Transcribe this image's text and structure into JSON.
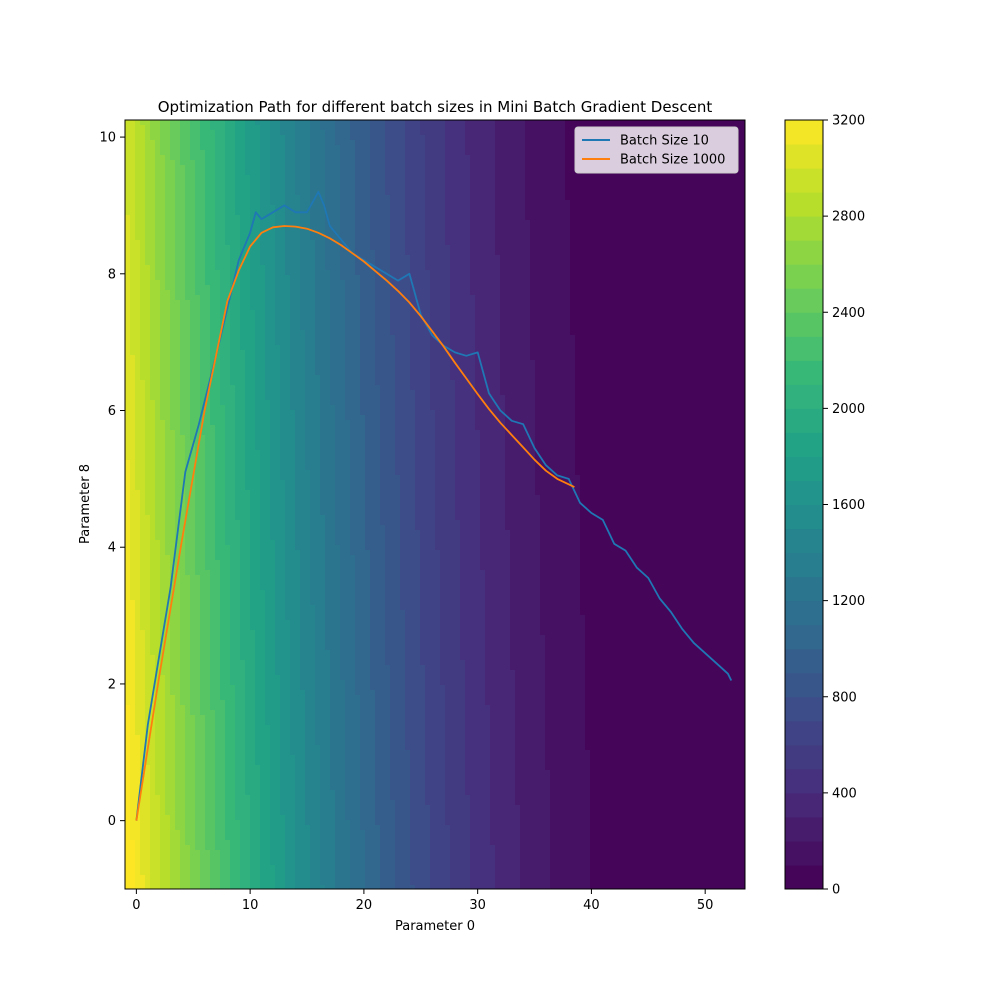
{
  "chart_data": {
    "type": "contour",
    "title": "Optimization Path for different batch sizes in Mini Batch Gradient Descent",
    "xlabel": "Parameter 0",
    "ylabel": "Parameter 8",
    "xlim": [
      -1,
      53.5
    ],
    "ylim": [
      -1,
      10.25
    ],
    "x_ticks": [
      0,
      10,
      20,
      30,
      40,
      50
    ],
    "y_ticks": [
      0,
      2,
      4,
      6,
      8,
      10
    ],
    "grid": false,
    "colormap": "viridis",
    "colorbar": {
      "range": [
        0,
        3200
      ],
      "ticks": [
        0,
        400,
        800,
        1200,
        1600,
        2000,
        2400,
        2800,
        3200
      ]
    },
    "legend": {
      "position": "top-right",
      "entries": [
        {
          "label": "Batch Size 10",
          "color": "#1f77b4"
        },
        {
          "label": "Batch Size 1000",
          "color": "#ff7f0e"
        }
      ]
    },
    "series": [
      {
        "name": "Batch Size 10",
        "color": "#1f77b4",
        "points": [
          [
            0,
            0
          ],
          [
            1,
            1.4
          ],
          [
            2,
            2.4
          ],
          [
            3,
            3.4
          ],
          [
            4.3,
            5.1
          ],
          [
            5.5,
            5.8
          ],
          [
            7,
            6.8
          ],
          [
            8,
            7.5
          ],
          [
            9,
            8.2
          ],
          [
            10,
            8.6
          ],
          [
            10.5,
            8.9
          ],
          [
            11,
            8.8
          ],
          [
            12,
            8.9
          ],
          [
            13,
            9.0
          ],
          [
            14,
            8.9
          ],
          [
            15,
            8.9
          ],
          [
            16,
            9.2
          ],
          [
            16.5,
            9.0
          ],
          [
            17,
            8.7
          ],
          [
            18,
            8.5
          ],
          [
            19,
            8.3
          ],
          [
            20,
            8.2
          ],
          [
            21,
            8.1
          ],
          [
            22,
            8.0
          ],
          [
            23,
            7.9
          ],
          [
            24,
            8.0
          ],
          [
            25,
            7.4
          ],
          [
            26,
            7.1
          ],
          [
            27,
            6.95
          ],
          [
            28,
            6.85
          ],
          [
            29,
            6.8
          ],
          [
            30,
            6.85
          ],
          [
            31,
            6.25
          ],
          [
            32,
            6.0
          ],
          [
            33,
            5.85
          ],
          [
            34,
            5.8
          ],
          [
            35,
            5.45
          ],
          [
            36,
            5.2
          ],
          [
            37,
            5.05
          ],
          [
            38,
            5.0
          ],
          [
            39,
            4.65
          ],
          [
            40,
            4.5
          ],
          [
            41,
            4.4
          ],
          [
            42,
            4.05
          ],
          [
            43,
            3.95
          ],
          [
            44,
            3.7
          ],
          [
            45,
            3.55
          ],
          [
            46,
            3.25
          ],
          [
            47,
            3.05
          ],
          [
            48,
            2.8
          ],
          [
            49,
            2.6
          ],
          [
            50,
            2.45
          ],
          [
            51,
            2.3
          ],
          [
            52,
            2.15
          ],
          [
            52.3,
            2.05
          ]
        ]
      },
      {
        "name": "Batch Size 1000",
        "color": "#ff7f0e",
        "points": [
          [
            0,
            0
          ],
          [
            2,
            2.1
          ],
          [
            4,
            4.1
          ],
          [
            6,
            6.0
          ],
          [
            8,
            7.6
          ],
          [
            9,
            8.05
          ],
          [
            10,
            8.4
          ],
          [
            11,
            8.6
          ],
          [
            12,
            8.68
          ],
          [
            13,
            8.7
          ],
          [
            14,
            8.69
          ],
          [
            15,
            8.66
          ],
          [
            16,
            8.6
          ],
          [
            17,
            8.52
          ],
          [
            18,
            8.42
          ],
          [
            19,
            8.3
          ],
          [
            20,
            8.18
          ],
          [
            21,
            8.04
          ],
          [
            22,
            7.9
          ],
          [
            23,
            7.75
          ],
          [
            24,
            7.58
          ],
          [
            25,
            7.38
          ],
          [
            26,
            7.16
          ],
          [
            27,
            6.94
          ],
          [
            28,
            6.7
          ],
          [
            29,
            6.47
          ],
          [
            30,
            6.24
          ],
          [
            31,
            6.02
          ],
          [
            32,
            5.82
          ],
          [
            33,
            5.64
          ],
          [
            34,
            5.46
          ],
          [
            35,
            5.28
          ],
          [
            36,
            5.12
          ],
          [
            37,
            5.0
          ],
          [
            38,
            4.92
          ],
          [
            38.5,
            4.88
          ]
        ]
      }
    ]
  }
}
